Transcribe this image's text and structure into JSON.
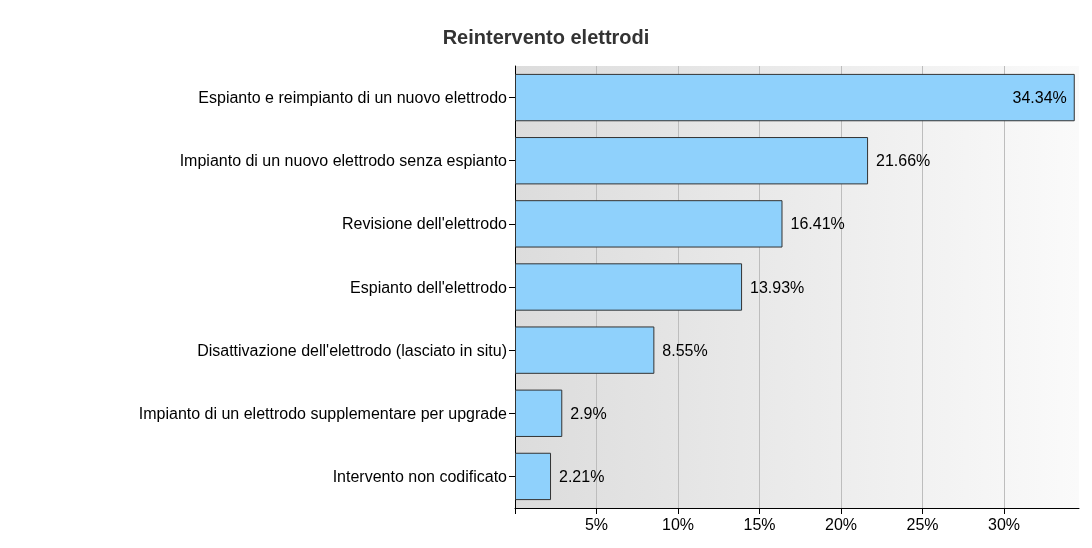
{
  "chart_data": {
    "type": "bar",
    "orientation": "horizontal",
    "title": "Reintervento elettrodi",
    "categories": [
      "Espianto e reimpianto di un nuovo elettrodo",
      "Impianto di un nuovo elettrodo senza espianto",
      "Revisione dell'elettrodo",
      "Espianto dell'elettrodo",
      "Disattivazione dell'elettrodo (lasciato in situ)",
      "Impianto di un elettrodo supplementare per upgrade",
      "Intervento non codificato"
    ],
    "values": [
      34.34,
      21.66,
      16.41,
      13.93,
      8.55,
      2.9,
      2.21
    ],
    "value_labels": [
      "34.34%",
      "21.66%",
      "16.41%",
      "13.93%",
      "8.55%",
      "2.9%",
      "2.21%"
    ],
    "color": "#8fd1fc",
    "xlim": [
      0,
      34.6
    ],
    "xticks": [
      {
        "value": 5,
        "label": "5%"
      },
      {
        "value": 10,
        "label": "10%"
      },
      {
        "value": 15,
        "label": "15%"
      },
      {
        "value": 20,
        "label": "20%"
      },
      {
        "value": 25,
        "label": "25%"
      },
      {
        "value": 30,
        "label": "30%"
      }
    ],
    "grid": "x"
  }
}
